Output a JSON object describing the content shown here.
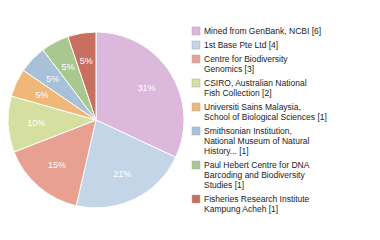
{
  "chart_data": {
    "type": "pie",
    "categories": [
      "Mined from GenBank, NCBI [6]",
      "1st Base Pte Ltd [4]",
      "Centre for Biodiversity\nGenomics [3]",
      "CSIRO, Australian National\nFish Collection [2]",
      "Universiti Sains Malaysia,\nSchool of Biological Sciences [1]",
      "Smithsonian Institution,\nNational Museum of Natural\nHistory... [1]",
      "Paul Hebert Centre for DNA\nBarcoding and Biodiversity\nStudies [1]",
      "Fisheries Research Institute\nKampung Acheh [1]"
    ],
    "values": [
      31,
      21,
      15,
      10,
      5,
      5,
      5,
      5
    ],
    "value_labels": [
      "31%",
      "21%",
      "15%",
      "10%",
      "5%",
      "5%",
      "5%",
      "5%"
    ],
    "colors": [
      "#dbb8dc",
      "#c5d5e8",
      "#e8a090",
      "#d4dfa0",
      "#f0b878",
      "#a8c0d8",
      "#a8c890",
      "#c87060"
    ],
    "data_labels": true,
    "legend": "right"
  }
}
